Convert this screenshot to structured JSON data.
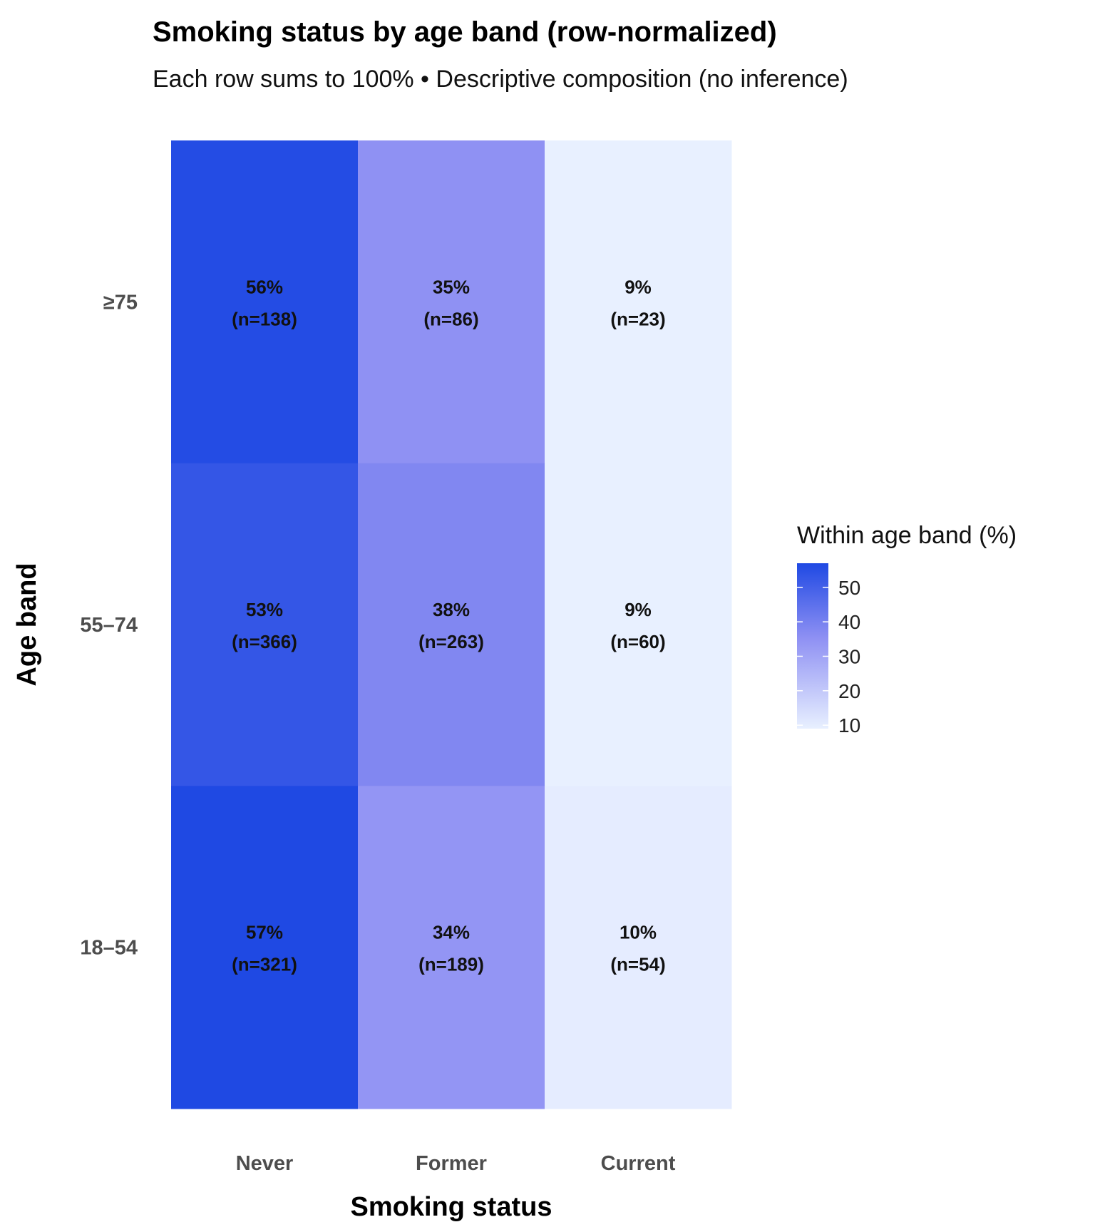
{
  "chart_data": {
    "type": "heatmap",
    "title": "Smoking status by age band (row-normalized)",
    "subtitle": "Each row sums to 100% • Descriptive composition (no inference)",
    "xlabel": "Smoking status",
    "ylabel": "Age band",
    "x_categories": [
      "Never",
      "Former",
      "Current"
    ],
    "y_categories": [
      "≥75",
      "55–74",
      "18–54"
    ],
    "cells": [
      [
        {
          "pct": 56,
          "n": 138
        },
        {
          "pct": 35,
          "n": 86
        },
        {
          "pct": 9,
          "n": 23
        }
      ],
      [
        {
          "pct": 53,
          "n": 366
        },
        {
          "pct": 38,
          "n": 263
        },
        {
          "pct": 9,
          "n": 60
        }
      ],
      [
        {
          "pct": 57,
          "n": 321
        },
        {
          "pct": 34,
          "n": 189
        },
        {
          "pct": 10,
          "n": 54
        }
      ]
    ],
    "cell_labels": [
      [
        "56%",
        "(n=138)",
        "35%",
        "(n=86)",
        "9%",
        "(n=23)"
      ],
      [
        "53%",
        "(n=366)",
        "38%",
        "(n=263)",
        "9%",
        "(n=60)"
      ],
      [
        "57%",
        "(n=321)",
        "34%",
        "(n=189)",
        "10%",
        "(n=54)"
      ]
    ],
    "legend": {
      "title": "Within age band (%)",
      "ticks": [
        10,
        20,
        30,
        40,
        50
      ],
      "range": [
        9,
        57
      ],
      "color_low": "#e8f0ff",
      "color_high": "#1f49e3",
      "placement": "right"
    },
    "grid": false
  }
}
